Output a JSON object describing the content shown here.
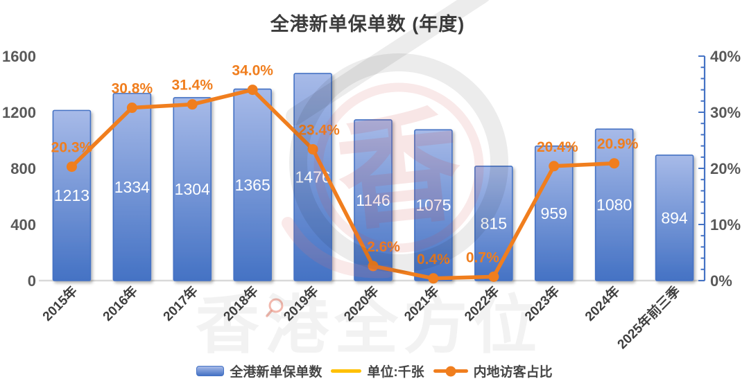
{
  "title": "全港新单保单数 (年度)",
  "watermark": {
    "text": "香港全方位",
    "seal_char": "香"
  },
  "legend": {
    "items": [
      {
        "label": "全港新单保单数",
        "swatch": "bar",
        "color": "#4472C4"
      },
      {
        "label": "单位:千张",
        "swatch": "line",
        "color": "#FFC000"
      },
      {
        "label": "内地访客占比",
        "swatch": "line-marker",
        "color": "#F07E1E"
      }
    ]
  },
  "chart_data": {
    "type": "bar+line",
    "title": "全港新单保单数 (年度)",
    "categories": [
      "2015年",
      "2016年",
      "2017年",
      "2018年",
      "2019年",
      "2020年",
      "2021年",
      "2022年",
      "2023年",
      "2024年",
      "2025年前三季"
    ],
    "series": [
      {
        "name": "全港新单保单数",
        "type": "bar",
        "axis": "left",
        "unit": "千张",
        "values": [
          1213,
          1334,
          1304,
          1365,
          1476,
          1146,
          1075,
          815,
          959,
          1080,
          894
        ]
      },
      {
        "name": "内地访客占比",
        "type": "line",
        "axis": "right",
        "values": [
          20.3,
          30.8,
          31.4,
          34.0,
          23.4,
          2.6,
          0.4,
          0.7,
          20.4,
          20.9,
          null
        ],
        "labels": [
          "20.3%",
          "30.8%",
          "31.4%",
          "34.0%",
          "23.4%",
          "2.6%",
          "0.4%",
          "0.7%",
          "20.4%",
          "20.9%",
          ""
        ]
      }
    ],
    "left_axis": {
      "min": 0,
      "max": 1600,
      "ticks": [
        0,
        400,
        800,
        1200,
        1600
      ]
    },
    "right_axis": {
      "min": 0,
      "max": 40,
      "major_ticks": [
        "0%",
        "10%",
        "20%",
        "30%",
        "40%"
      ],
      "major_step": 10,
      "minor_step": 2
    },
    "grid": "off",
    "legend_position": "bottom",
    "label_dx": [
      0,
      0,
      0,
      0,
      9,
      15,
      0,
      -16,
      5,
      5,
      0
    ],
    "colors": {
      "bar_fill_top": "#A7BAE8",
      "bar_fill_bottom": "#4472C4",
      "bar_border": "#4472C4",
      "bar_value_text": "#ffffff",
      "line": "#F07E1E",
      "line_label": "#F07E1E",
      "axis_text": "#595959",
      "category_text": "#3f3f3f",
      "right_axis_line": "#4472C4",
      "baseline": "#D9D9D9"
    }
  }
}
